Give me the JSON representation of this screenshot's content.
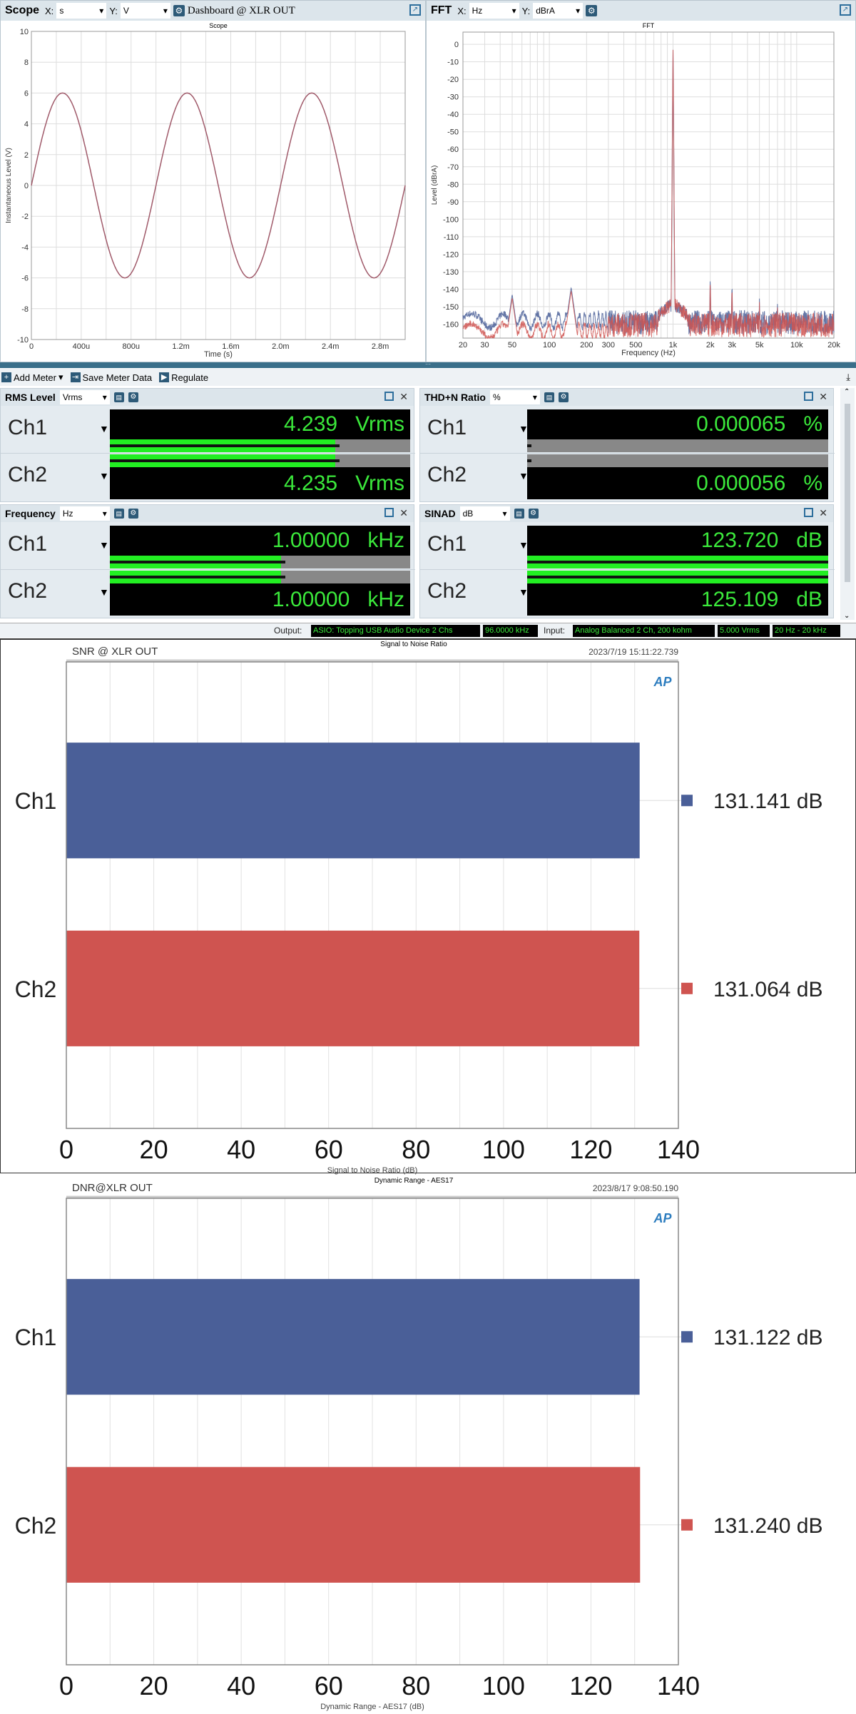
{
  "scope_panel": {
    "title": "Scope",
    "x_label": "X:",
    "x_unit": "s",
    "y_label": "Y:",
    "y_unit": "V",
    "dashboard": "Dashboard @ XLR OUT",
    "icons": [
      "gear-icon",
      "popout-icon"
    ]
  },
  "fft_panel": {
    "title": "FFT",
    "x_label": "X:",
    "x_unit": "Hz",
    "y_label": "Y:",
    "y_unit": "dBrA"
  },
  "toolbar": {
    "add_meter": "Add Meter",
    "save_meter_data": "Save Meter Data",
    "regulate": "Regulate"
  },
  "meters": [
    {
      "title": "RMS Level",
      "unit": "Vrms",
      "channels": [
        {
          "label": "Ch1",
          "value": "4.239",
          "unit": "Vrms",
          "bar": 0.75
        },
        {
          "label": "Ch2",
          "value": "4.235",
          "unit": "Vrms",
          "bar": 0.75
        }
      ]
    },
    {
      "title": "THD+N Ratio",
      "unit": "%",
      "channels": [
        {
          "label": "Ch1",
          "value": "0.000065",
          "unit": "%",
          "bar": 0.0
        },
        {
          "label": "Ch2",
          "value": "0.000056",
          "unit": "%",
          "bar": 0.0
        }
      ]
    },
    {
      "title": "Frequency",
      "unit": "Hz",
      "channels": [
        {
          "label": "Ch1",
          "value": "1.00000",
          "unit": "kHz",
          "bar": 0.57
        },
        {
          "label": "Ch2",
          "value": "1.00000",
          "unit": "kHz",
          "bar": 0.57
        }
      ]
    },
    {
      "title": "SINAD",
      "unit": "dB",
      "channels": [
        {
          "label": "Ch1",
          "value": "123.720",
          "unit": "dB",
          "bar": 1.0
        },
        {
          "label": "Ch2",
          "value": "125.109",
          "unit": "dB",
          "bar": 1.0
        }
      ]
    }
  ],
  "status": {
    "output_label": "Output:",
    "output_device": "ASIO: Topping USB Audio Device 2 Chs",
    "output_rate": "96.0000 kHz",
    "input_label": "Input:",
    "input_device": "Analog Balanced 2 Ch, 200 kohm",
    "input_range": "5.000 Vrms",
    "bandwidth": "20 Hz - 20 kHz"
  },
  "colors": {
    "ch1": "#4a5f98",
    "ch2": "#cf5450",
    "meter_green": "#22ee22",
    "meter_text": "#3be83b",
    "scope_trace": "#a05a6a"
  },
  "chart_data": [
    {
      "type": "line",
      "title": "Scope",
      "xlabel": "Time (s)",
      "ylabel": "Instantaneous Level (V)",
      "xlim": [
        0,
        0.003
      ],
      "ylim": [
        -10,
        10
      ],
      "xticks": [
        "0",
        "400u",
        "800u",
        "1.2m",
        "1.6m",
        "2.0m",
        "2.4m",
        "2.8m"
      ],
      "xtick_values": [
        0,
        0.0004,
        0.0008,
        0.0012,
        0.0016,
        0.002,
        0.0024,
        0.0028
      ],
      "yticks": [
        10,
        8,
        6,
        4,
        2,
        0,
        -2,
        -4,
        -6,
        -8,
        -10
      ],
      "series": [
        {
          "waveform": "sine",
          "amplitude_v": 6,
          "frequency_hz": 1000
        }
      ],
      "grid": true
    },
    {
      "type": "line",
      "title": "FFT",
      "xlabel": "Frequency (Hz)",
      "ylabel": "Level (dBrA)",
      "xscale": "log",
      "xlim": [
        20,
        20000
      ],
      "ylim": [
        -168,
        7
      ],
      "xticks": [
        "20",
        "30",
        "50",
        "100",
        "200",
        "300",
        "500",
        "1k",
        "2k",
        "3k",
        "5k",
        "10k",
        "20k"
      ],
      "xtick_values": [
        20,
        30,
        50,
        100,
        200,
        300,
        500,
        1000,
        2000,
        3000,
        5000,
        10000,
        20000
      ],
      "yticks": [
        0,
        -10,
        -20,
        -30,
        -40,
        -50,
        -60,
        -70,
        -80,
        -90,
        -100,
        -110,
        -120,
        -130,
        -140,
        -150,
        -160
      ],
      "noise_floor_db": -157,
      "peaks": [
        {
          "hz": 1000,
          "db": 0
        },
        {
          "hz": 50,
          "db": -143
        },
        {
          "hz": 150,
          "db": -139
        },
        {
          "hz": 2000,
          "db": -132
        },
        {
          "hz": 3000,
          "db": -135
        },
        {
          "hz": 5000,
          "db": -145
        },
        {
          "hz": 7000,
          "db": -146
        }
      ],
      "grid": true
    },
    {
      "type": "bar",
      "orientation": "horizontal",
      "title": "Signal to Noise Ratio",
      "subtitle": "SNR @ XLR OUT",
      "timestamp": "2023/7/19 15:11:22.739",
      "categories": [
        "Ch1",
        "Ch2"
      ],
      "values": [
        131.141,
        131.064
      ],
      "value_labels": [
        "131.141 dB",
        "131.064 dB"
      ],
      "xlabel": "Signal to Noise Ratio (dB)",
      "xlim": [
        0,
        140
      ],
      "xticks": [
        0,
        20,
        40,
        60,
        80,
        100,
        120,
        140
      ],
      "grid": true,
      "logo": "AP"
    },
    {
      "type": "bar",
      "orientation": "horizontal",
      "title": "Dynamic Range - AES17",
      "subtitle": "DNR@XLR OUT",
      "timestamp": "2023/8/17 9:08:50.190",
      "categories": [
        "Ch1",
        "Ch2"
      ],
      "values": [
        131.122,
        131.24
      ],
      "value_labels": [
        "131.122 dB",
        "131.240 dB"
      ],
      "xlabel": "Dynamic Range - AES17 (dB)",
      "xlim": [
        0,
        140
      ],
      "xticks": [
        0,
        20,
        40,
        60,
        80,
        100,
        120,
        140
      ],
      "grid": true,
      "logo": "AP"
    }
  ]
}
